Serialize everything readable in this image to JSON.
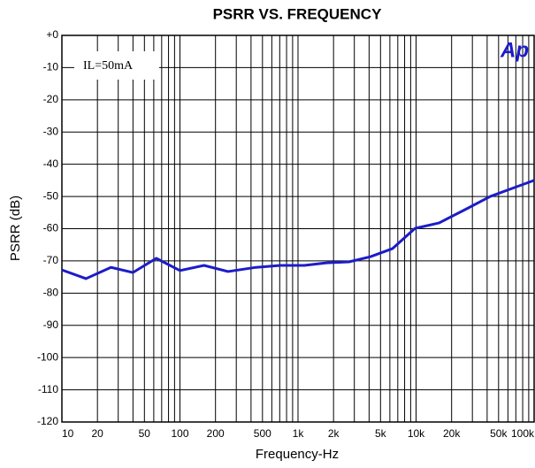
{
  "chart_data": {
    "type": "line",
    "title": "PSRR VS. FREQUENCY",
    "xlabel": "Frequency-Hz",
    "ylabel": "PSRR (dB)",
    "annotations": [
      "IL=50mA",
      "Ap"
    ],
    "xscale": "log",
    "xlim": [
      10,
      100000
    ],
    "ylim": [
      -120,
      0
    ],
    "xticks": [
      10,
      20,
      50,
      100,
      200,
      500,
      {
        "value": 1000,
        "label": "1k"
      },
      {
        "value": 2000,
        "label": "2k"
      },
      {
        "value": 5000,
        "label": "5k"
      },
      {
        "value": 10000,
        "label": "10k"
      },
      {
        "value": 20000,
        "label": "20k"
      },
      {
        "value": 50000,
        "label": "50k"
      },
      {
        "value": 100000,
        "label": "100k"
      }
    ],
    "xminorticks": [
      30,
      40,
      60,
      70,
      80,
      90,
      300,
      400,
      600,
      700,
      800,
      900,
      3000,
      4000,
      6000,
      7000,
      8000,
      9000,
      30000,
      40000,
      60000,
      70000,
      80000,
      90000
    ],
    "yticks": [
      {
        "value": 0,
        "label": "+0"
      },
      -10,
      -20,
      -30,
      -40,
      -50,
      -60,
      -70,
      -80,
      -90,
      -100,
      -110,
      -120
    ],
    "grid": true,
    "x": [
      10,
      16,
      26,
      40,
      63,
      100,
      160,
      255,
      440,
      710,
      1130,
      1740,
      2700,
      4100,
      6300,
      9800,
      15700,
      25000,
      42500,
      65000,
      100000
    ],
    "series": [
      {
        "name": "PSRR",
        "color": "#1c1cc8",
        "values": [
          -72.8,
          -75.5,
          -72,
          -73.6,
          -69.2,
          -73,
          -71.4,
          -73.3,
          -72,
          -71.4,
          -71.4,
          -70.6,
          -70.3,
          -68.7,
          -66.2,
          -59.9,
          -58.2,
          -54.4,
          -50,
          -47.5,
          -45
        ]
      }
    ]
  }
}
